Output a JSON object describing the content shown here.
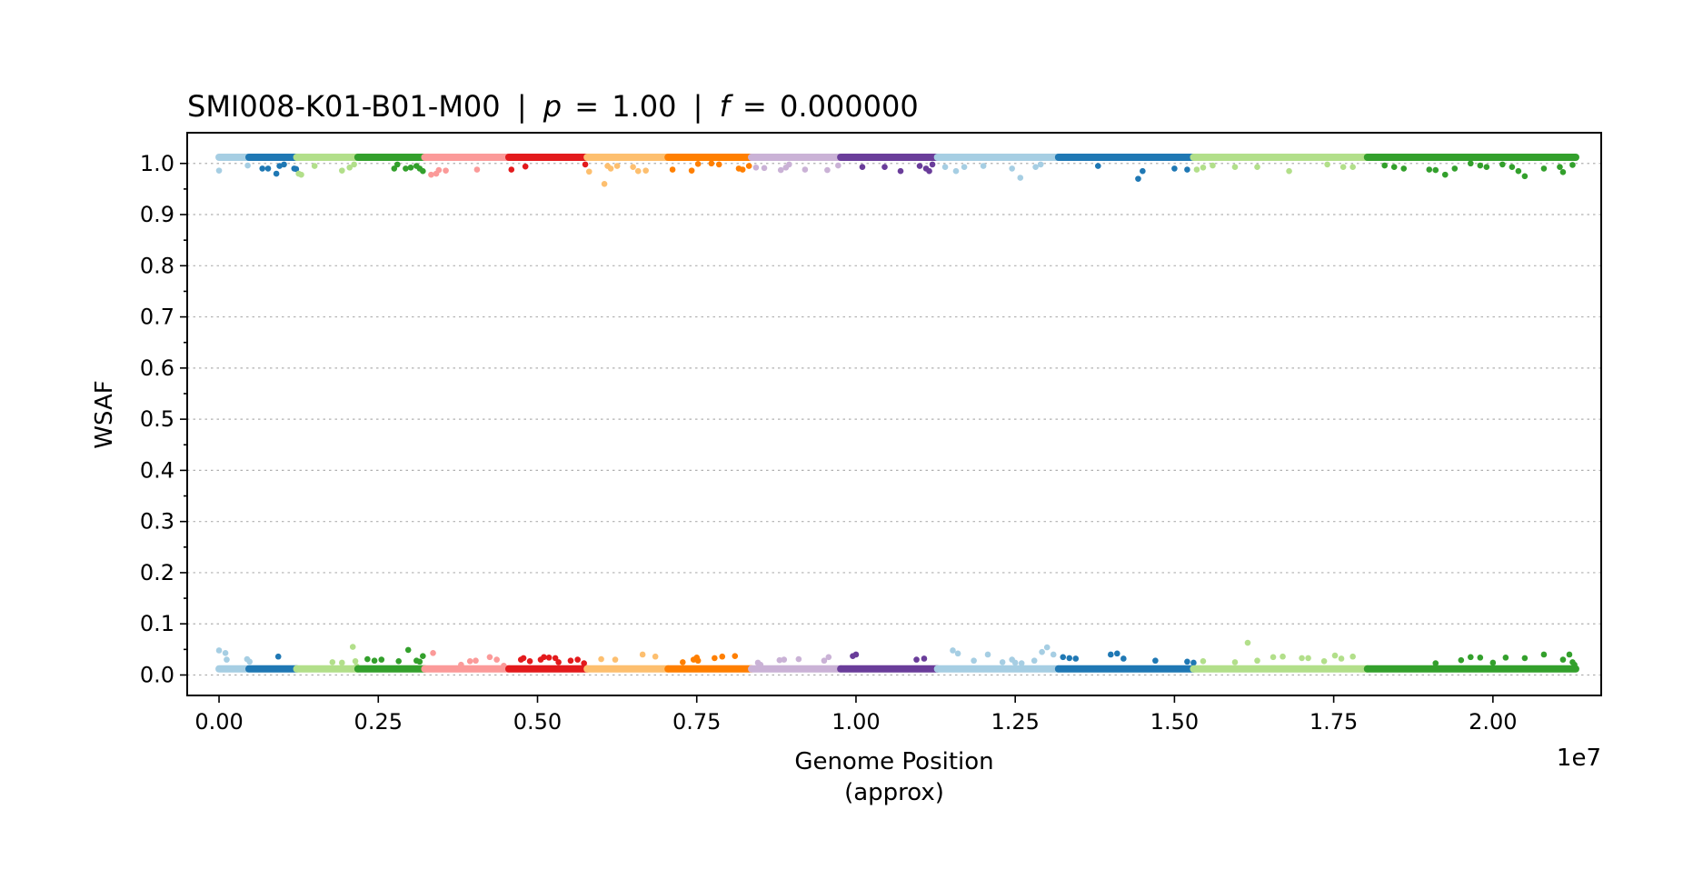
{
  "chart_data": {
    "type": "scatter",
    "title_sample": "SMI008-K01-B01-M00",
    "title_p_symbol": "p",
    "title_p_value": "1.00",
    "title_f_symbol": "f",
    "title_f_value": "0.000000",
    "title_separator": "|",
    "title_equals": "=",
    "xlabel_line1": "Genome Position",
    "xlabel_line2": "(approx)",
    "ylabel": "WSAF",
    "x_offset_label": "1e7",
    "x_scale": 10000000,
    "xlim": [
      -0.05,
      2.17
    ],
    "ylim": [
      -0.04,
      1.06
    ],
    "x_ticks": [
      "0.00",
      "0.25",
      "0.50",
      "0.75",
      "1.00",
      "1.25",
      "1.50",
      "1.75",
      "2.00"
    ],
    "x_tick_values": [
      0.0,
      0.25,
      0.5,
      0.75,
      1.0,
      1.25,
      1.5,
      1.75,
      2.0
    ],
    "y_ticks": [
      "0.0",
      "0.1",
      "0.2",
      "0.3",
      "0.4",
      "0.5",
      "0.6",
      "0.7",
      "0.8",
      "0.9",
      "1.0"
    ],
    "y_tick_values": [
      0.0,
      0.1,
      0.2,
      0.3,
      0.4,
      0.5,
      0.6,
      0.7,
      0.8,
      0.9,
      1.0
    ],
    "y_minor_step": 0.05,
    "grid": "y-dotted",
    "band_high_value": 1.012,
    "band_low_value": 0.012,
    "series": [
      {
        "color": "#a6cee3",
        "x_range": [
          0.0,
          0.047
        ],
        "high": [
          [
            0.0,
            0.986
          ],
          [
            0.045,
            0.996
          ]
        ],
        "low": [
          [
            0.0,
            0.048
          ],
          [
            0.01,
            0.043
          ],
          [
            0.012,
            0.03
          ],
          [
            0.044,
            0.031
          ],
          [
            0.048,
            0.026
          ]
        ]
      },
      {
        "color": "#1f78b4",
        "x_range": [
          0.047,
          0.122
        ],
        "high": [
          [
            0.068,
            0.99
          ],
          [
            0.077,
            0.99
          ],
          [
            0.09,
            0.98
          ],
          [
            0.095,
            0.995
          ],
          [
            0.102,
            0.998
          ],
          [
            0.118,
            0.99
          ],
          [
            0.121,
            0.989
          ]
        ],
        "low": [
          [
            0.093,
            0.036
          ]
        ]
      },
      {
        "color": "#b2df8a",
        "x_range": [
          0.122,
          0.218
        ],
        "high": [
          [
            0.125,
            0.98
          ],
          [
            0.129,
            0.978
          ],
          [
            0.15,
            0.995
          ],
          [
            0.193,
            0.986
          ],
          [
            0.205,
            0.992
          ],
          [
            0.212,
            0.998
          ]
        ],
        "low": [
          [
            0.178,
            0.025
          ],
          [
            0.193,
            0.024
          ],
          [
            0.21,
            0.055
          ],
          [
            0.214,
            0.027
          ],
          [
            0.216,
            0.017
          ]
        ]
      },
      {
        "color": "#33a02c",
        "x_range": [
          0.218,
          0.323
        ],
        "high": [
          [
            0.275,
            0.99
          ],
          [
            0.28,
            0.998
          ],
          [
            0.293,
            0.99
          ],
          [
            0.301,
            0.992
          ],
          [
            0.31,
            0.995
          ],
          [
            0.315,
            0.99
          ],
          [
            0.32,
            0.985
          ]
        ],
        "low": [
          [
            0.233,
            0.031
          ],
          [
            0.244,
            0.028
          ],
          [
            0.255,
            0.03
          ],
          [
            0.282,
            0.027
          ],
          [
            0.297,
            0.049
          ],
          [
            0.31,
            0.028
          ],
          [
            0.315,
            0.026
          ],
          [
            0.32,
            0.037
          ]
        ]
      },
      {
        "color": "#fb9a99",
        "x_range": [
          0.323,
          0.455
        ],
        "high": [
          [
            0.333,
            0.978
          ],
          [
            0.341,
            0.98
          ],
          [
            0.345,
            0.987
          ],
          [
            0.356,
            0.986
          ],
          [
            0.405,
            0.988
          ]
        ],
        "low": [
          [
            0.336,
            0.043
          ],
          [
            0.38,
            0.02
          ],
          [
            0.394,
            0.027
          ],
          [
            0.403,
            0.028
          ],
          [
            0.425,
            0.035
          ],
          [
            0.436,
            0.03
          ],
          [
            0.447,
            0.018
          ]
        ]
      },
      {
        "color": "#e31a1c",
        "x_range": [
          0.455,
          0.578
        ],
        "high": [
          [
            0.459,
            0.988
          ],
          [
            0.481,
            0.994
          ],
          [
            0.575,
            0.998
          ]
        ],
        "low": [
          [
            0.474,
            0.03
          ],
          [
            0.478,
            0.033
          ],
          [
            0.488,
            0.027
          ],
          [
            0.505,
            0.03
          ],
          [
            0.51,
            0.035
          ],
          [
            0.518,
            0.034
          ],
          [
            0.528,
            0.033
          ],
          [
            0.533,
            0.025
          ],
          [
            0.552,
            0.028
          ],
          [
            0.563,
            0.03
          ],
          [
            0.573,
            0.023
          ]
        ]
      },
      {
        "color": "#fdbf6f",
        "x_range": [
          0.578,
          0.705
        ],
        "high": [
          [
            0.581,
            0.984
          ],
          [
            0.605,
            0.96
          ],
          [
            0.61,
            0.995
          ],
          [
            0.615,
            0.99
          ],
          [
            0.625,
            0.995
          ],
          [
            0.65,
            0.993
          ],
          [
            0.658,
            0.985
          ],
          [
            0.67,
            0.986
          ]
        ],
        "low": [
          [
            0.6,
            0.031
          ],
          [
            0.622,
            0.03
          ],
          [
            0.665,
            0.04
          ],
          [
            0.685,
            0.036
          ]
        ]
      },
      {
        "color": "#ff7f00",
        "x_range": [
          0.705,
          0.836
        ],
        "high": [
          [
            0.712,
            0.988
          ],
          [
            0.742,
            0.986
          ],
          [
            0.752,
            0.999
          ],
          [
            0.773,
            1.0
          ],
          [
            0.785,
            0.998
          ],
          [
            0.816,
            0.99
          ],
          [
            0.822,
            0.988
          ],
          [
            0.832,
            0.995
          ]
        ],
        "low": [
          [
            0.728,
            0.025
          ],
          [
            0.745,
            0.03
          ],
          [
            0.75,
            0.034
          ],
          [
            0.752,
            0.028
          ],
          [
            0.778,
            0.033
          ],
          [
            0.79,
            0.036
          ],
          [
            0.81,
            0.037
          ]
        ]
      },
      {
        "color": "#cab2d6",
        "x_range": [
          0.836,
          0.976
        ],
        "high": [
          [
            0.843,
            0.992
          ],
          [
            0.856,
            0.991
          ],
          [
            0.882,
            0.987
          ],
          [
            0.89,
            0.992
          ],
          [
            0.895,
            0.998
          ],
          [
            0.92,
            0.988
          ],
          [
            0.955,
            0.987
          ],
          [
            0.972,
            0.996
          ]
        ],
        "low": [
          [
            0.846,
            0.024
          ],
          [
            0.85,
            0.02
          ],
          [
            0.88,
            0.029
          ],
          [
            0.887,
            0.03
          ],
          [
            0.91,
            0.031
          ],
          [
            0.95,
            0.028
          ],
          [
            0.957,
            0.035
          ]
        ]
      },
      {
        "color": "#6a3d9a",
        "x_range": [
          0.976,
          1.128
        ],
        "high": [
          [
            1.01,
            0.993
          ],
          [
            1.045,
            0.993
          ],
          [
            1.07,
            0.985
          ],
          [
            1.1,
            0.995
          ],
          [
            1.11,
            0.99
          ],
          [
            1.115,
            0.985
          ],
          [
            1.12,
            0.998
          ]
        ],
        "low": [
          [
            0.995,
            0.037
          ],
          [
            1.0,
            0.04
          ],
          [
            1.095,
            0.03
          ],
          [
            1.107,
            0.032
          ]
        ]
      },
      {
        "color": "#a6cee3",
        "x_range": [
          1.128,
          1.318
        ],
        "high": [
          [
            1.14,
            0.993
          ],
          [
            1.157,
            0.985
          ],
          [
            1.17,
            0.993
          ],
          [
            1.2,
            0.995
          ],
          [
            1.245,
            0.99
          ],
          [
            1.258,
            0.972
          ],
          [
            1.282,
            0.993
          ],
          [
            1.29,
            0.998
          ]
        ],
        "low": [
          [
            1.152,
            0.048
          ],
          [
            1.16,
            0.042
          ],
          [
            1.185,
            0.028
          ],
          [
            1.207,
            0.04
          ],
          [
            1.23,
            0.025
          ],
          [
            1.245,
            0.03
          ],
          [
            1.25,
            0.024
          ],
          [
            1.26,
            0.023
          ],
          [
            1.28,
            0.028
          ],
          [
            1.292,
            0.045
          ],
          [
            1.3,
            0.054
          ],
          [
            1.31,
            0.04
          ]
        ]
      },
      {
        "color": "#1f78b4",
        "x_range": [
          1.318,
          1.53
        ],
        "high": [
          [
            1.38,
            0.995
          ],
          [
            1.443,
            0.97
          ],
          [
            1.45,
            0.985
          ],
          [
            1.5,
            0.99
          ],
          [
            1.52,
            0.988
          ]
        ],
        "low": [
          [
            1.325,
            0.035
          ],
          [
            1.335,
            0.033
          ],
          [
            1.345,
            0.032
          ],
          [
            1.4,
            0.04
          ],
          [
            1.41,
            0.042
          ],
          [
            1.42,
            0.032
          ],
          [
            1.47,
            0.028
          ],
          [
            1.52,
            0.026
          ],
          [
            1.53,
            0.024
          ]
        ]
      },
      {
        "color": "#b2df8a",
        "x_range": [
          1.53,
          1.803
        ],
        "high": [
          [
            1.535,
            0.988
          ],
          [
            1.545,
            0.992
          ],
          [
            1.56,
            0.996
          ],
          [
            1.595,
            0.993
          ],
          [
            1.63,
            0.993
          ],
          [
            1.68,
            0.985
          ],
          [
            1.74,
            0.998
          ],
          [
            1.765,
            0.993
          ],
          [
            1.78,
            0.993
          ]
        ],
        "low": [
          [
            1.545,
            0.027
          ],
          [
            1.595,
            0.025
          ],
          [
            1.615,
            0.063
          ],
          [
            1.63,
            0.028
          ],
          [
            1.655,
            0.035
          ],
          [
            1.67,
            0.036
          ],
          [
            1.7,
            0.033
          ],
          [
            1.71,
            0.033
          ],
          [
            1.735,
            0.027
          ],
          [
            1.752,
            0.038
          ],
          [
            1.762,
            0.032
          ],
          [
            1.78,
            0.036
          ]
        ]
      },
      {
        "color": "#33a02c",
        "x_range": [
          1.803,
          2.13
        ],
        "high": [
          [
            1.83,
            0.996
          ],
          [
            1.845,
            0.993
          ],
          [
            1.86,
            0.99
          ],
          [
            1.9,
            0.988
          ],
          [
            1.91,
            0.987
          ],
          [
            1.925,
            0.978
          ],
          [
            1.94,
            0.99
          ],
          [
            1.965,
            1.0
          ],
          [
            1.98,
            0.996
          ],
          [
            1.99,
            0.993
          ],
          [
            2.015,
            0.998
          ],
          [
            2.03,
            0.993
          ],
          [
            2.04,
            0.985
          ],
          [
            2.05,
            0.975
          ],
          [
            2.08,
            0.99
          ],
          [
            2.105,
            0.993
          ],
          [
            2.11,
            0.983
          ],
          [
            2.125,
            0.997
          ]
        ],
        "low": [
          [
            1.91,
            0.023
          ],
          [
            1.95,
            0.029
          ],
          [
            1.965,
            0.035
          ],
          [
            1.98,
            0.034
          ],
          [
            2.0,
            0.024
          ],
          [
            2.02,
            0.034
          ],
          [
            2.05,
            0.033
          ],
          [
            2.08,
            0.04
          ],
          [
            2.11,
            0.03
          ],
          [
            2.12,
            0.04
          ],
          [
            2.125,
            0.025
          ],
          [
            2.128,
            0.02
          ]
        ]
      }
    ]
  }
}
